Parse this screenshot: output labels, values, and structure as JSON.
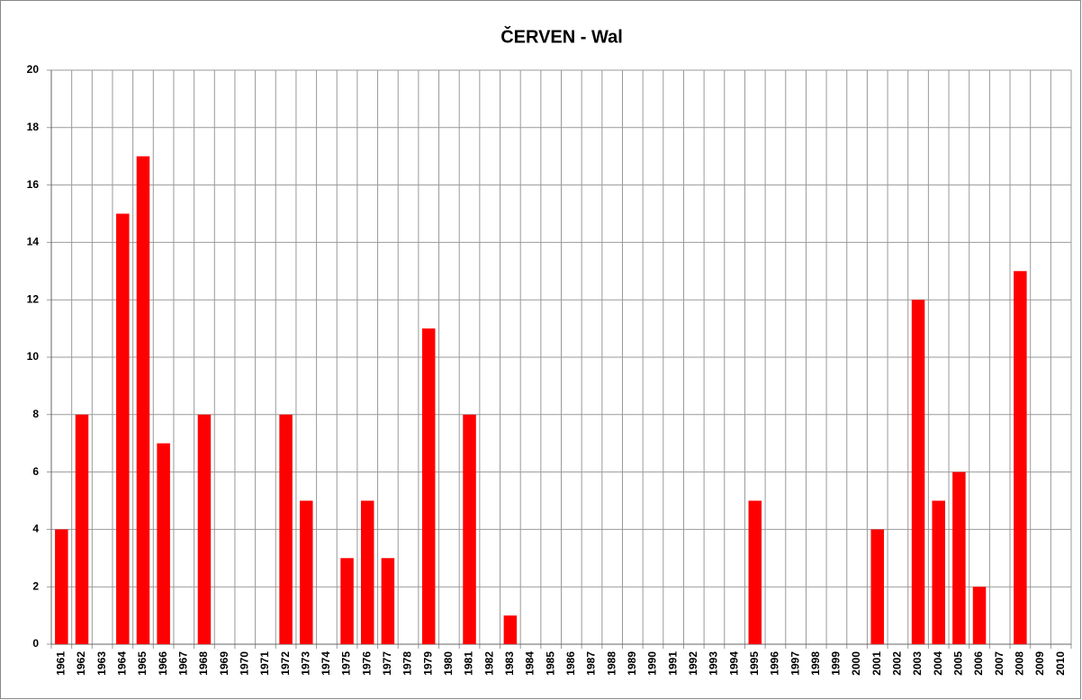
{
  "chart_data": {
    "type": "bar",
    "title": "ČERVEN - Wal",
    "categories": [
      "1961",
      "1962",
      "1963",
      "1964",
      "1965",
      "1966",
      "1967",
      "1968",
      "1969",
      "1970",
      "1971",
      "1972",
      "1973",
      "1974",
      "1975",
      "1976",
      "1977",
      "1978",
      "1979",
      "1980",
      "1981",
      "1982",
      "1983",
      "1984",
      "1985",
      "1986",
      "1987",
      "1988",
      "1989",
      "1990",
      "1991",
      "1992",
      "1993",
      "1994",
      "1995",
      "1996",
      "1997",
      "1998",
      "1999",
      "2000",
      "2001",
      "2002",
      "2003",
      "2004",
      "2005",
      "2006",
      "2007",
      "2008",
      "2009",
      "2010"
    ],
    "values": [
      4,
      8,
      0,
      15,
      17,
      7,
      0,
      8,
      0,
      0,
      0,
      8,
      5,
      0,
      3,
      5,
      3,
      0,
      11,
      0,
      8,
      0,
      1,
      0,
      0,
      0,
      0,
      0,
      0,
      0,
      0,
      0,
      0,
      0,
      5,
      0,
      0,
      0,
      0,
      0,
      4,
      0,
      12,
      5,
      6,
      2,
      0,
      13,
      0,
      0
    ],
    "color": "#ff0000",
    "ylim": [
      0,
      20
    ],
    "yticks": [
      0,
      2,
      4,
      6,
      8,
      10,
      12,
      14,
      16,
      18,
      20
    ],
    "grid": true
  }
}
